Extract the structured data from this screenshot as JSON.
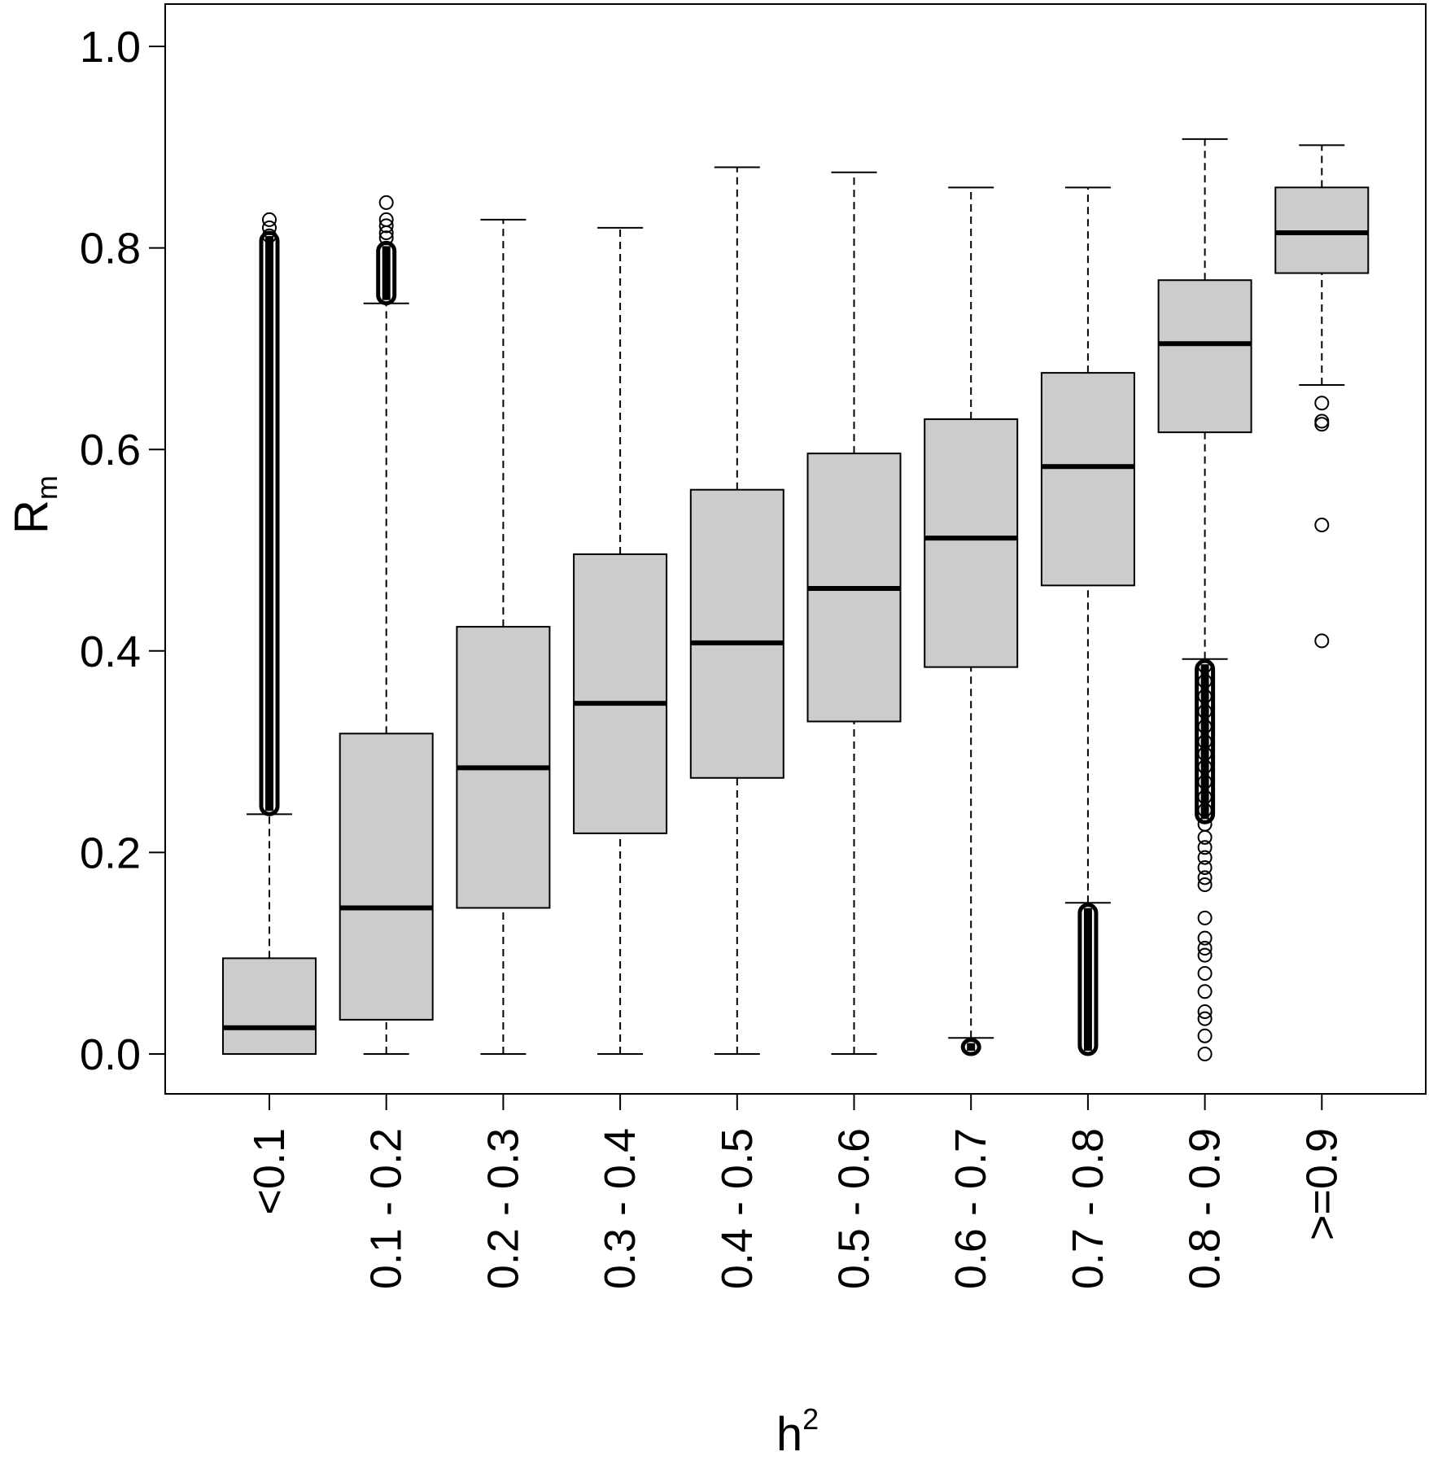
{
  "chart_data": {
    "type": "box",
    "xlabel": "h",
    "xlabel_sup": "2",
    "ylabel": "R",
    "ylabel_sub": "m",
    "ylim": [
      -0.04,
      1.04
    ],
    "yticks": [
      "0.0",
      "0.2",
      "0.4",
      "0.6",
      "0.8",
      "1.0"
    ],
    "categories": [
      "<0.1",
      "0.1 - 0.2",
      "0.2 - 0.3",
      "0.3 - 0.4",
      "0.4 - 0.5",
      "0.5 - 0.6",
      "0.6 - 0.7",
      "0.7 - 0.8",
      "0.8 - 0.9",
      ">=0.9"
    ],
    "box_fill": "#cccccc",
    "line_color": "#000000",
    "grid": false,
    "boxes": [
      {
        "whisker_low": 0.0,
        "q1": 0.0,
        "median": 0.026,
        "q3": 0.095,
        "whisker_high": 0.238,
        "outliers_dense": [
          0.238,
          0.815
        ],
        "outliers": [
          0.828,
          0.82,
          0.812
        ]
      },
      {
        "whisker_low": 0.0,
        "q1": 0.034,
        "median": 0.145,
        "q3": 0.318,
        "whisker_high": 0.745,
        "outliers_dense": [
          0.745,
          0.805
        ],
        "outliers": [
          0.845,
          0.828,
          0.822,
          0.815,
          0.81
        ]
      },
      {
        "whisker_low": 0.0,
        "q1": 0.145,
        "median": 0.284,
        "q3": 0.424,
        "whisker_high": 0.828,
        "outliers": []
      },
      {
        "whisker_low": 0.0,
        "q1": 0.219,
        "median": 0.348,
        "q3": 0.496,
        "whisker_high": 0.82,
        "outliers": []
      },
      {
        "whisker_low": 0.0,
        "q1": 0.274,
        "median": 0.408,
        "q3": 0.56,
        "whisker_high": 0.88,
        "outliers": []
      },
      {
        "whisker_low": 0.0,
        "q1": 0.33,
        "median": 0.462,
        "q3": 0.596,
        "whisker_high": 0.875,
        "outliers": []
      },
      {
        "whisker_low": 0.016,
        "q1": 0.384,
        "median": 0.512,
        "q3": 0.63,
        "whisker_high": 0.86,
        "outliers_dense": [
          0.0,
          0.014
        ],
        "outliers": []
      },
      {
        "whisker_low": 0.15,
        "q1": 0.465,
        "median": 0.583,
        "q3": 0.676,
        "whisker_high": 0.86,
        "outliers_dense": [
          0.0,
          0.148
        ],
        "outliers": []
      },
      {
        "whisker_low": 0.392,
        "q1": 0.617,
        "median": 0.705,
        "q3": 0.768,
        "whisker_high": 0.908,
        "outliers_dense": [
          0.23,
          0.39
        ],
        "outliers": [
          0.385,
          0.37,
          0.355,
          0.34,
          0.325,
          0.31,
          0.298,
          0.285,
          0.27,
          0.255,
          0.242,
          0.228,
          0.215,
          0.205,
          0.195,
          0.185,
          0.175,
          0.168,
          0.135,
          0.115,
          0.105,
          0.098,
          0.08,
          0.062,
          0.042,
          0.035,
          0.018,
          0.0
        ]
      },
      {
        "whisker_low": 0.664,
        "q1": 0.775,
        "median": 0.815,
        "q3": 0.86,
        "whisker_high": 0.902,
        "outliers": [
          0.646,
          0.628,
          0.625,
          0.525,
          0.41
        ]
      }
    ]
  }
}
